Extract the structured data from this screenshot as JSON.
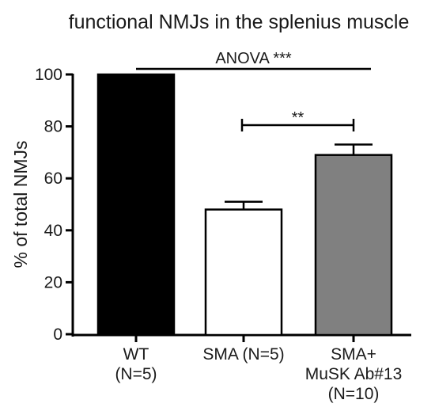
{
  "chart_data": {
    "type": "bar",
    "title": "functional NMJs in the splenius muscle",
    "ylabel": "% of total NMJs",
    "xlabel": "",
    "ylim": [
      0,
      100
    ],
    "yticks": [
      0,
      20,
      40,
      60,
      80,
      100
    ],
    "categories": [
      [
        "WT",
        "(N=5)"
      ],
      [
        "SMA (N=5)"
      ],
      [
        "SMA+",
        "MuSK Ab#13",
        "(N=10)"
      ]
    ],
    "values": [
      100,
      48,
      69
    ],
    "errors": [
      0,
      3,
      4
    ],
    "bar_colors": [
      "#000000",
      "#ffffff",
      "#808080"
    ],
    "annotations": [
      {
        "text": "ANOVA ***",
        "from": 0,
        "to": 2,
        "style": "line"
      },
      {
        "text": "**",
        "from": 1,
        "to": 2,
        "style": "bracket"
      }
    ],
    "grid": false,
    "legend": "none"
  }
}
